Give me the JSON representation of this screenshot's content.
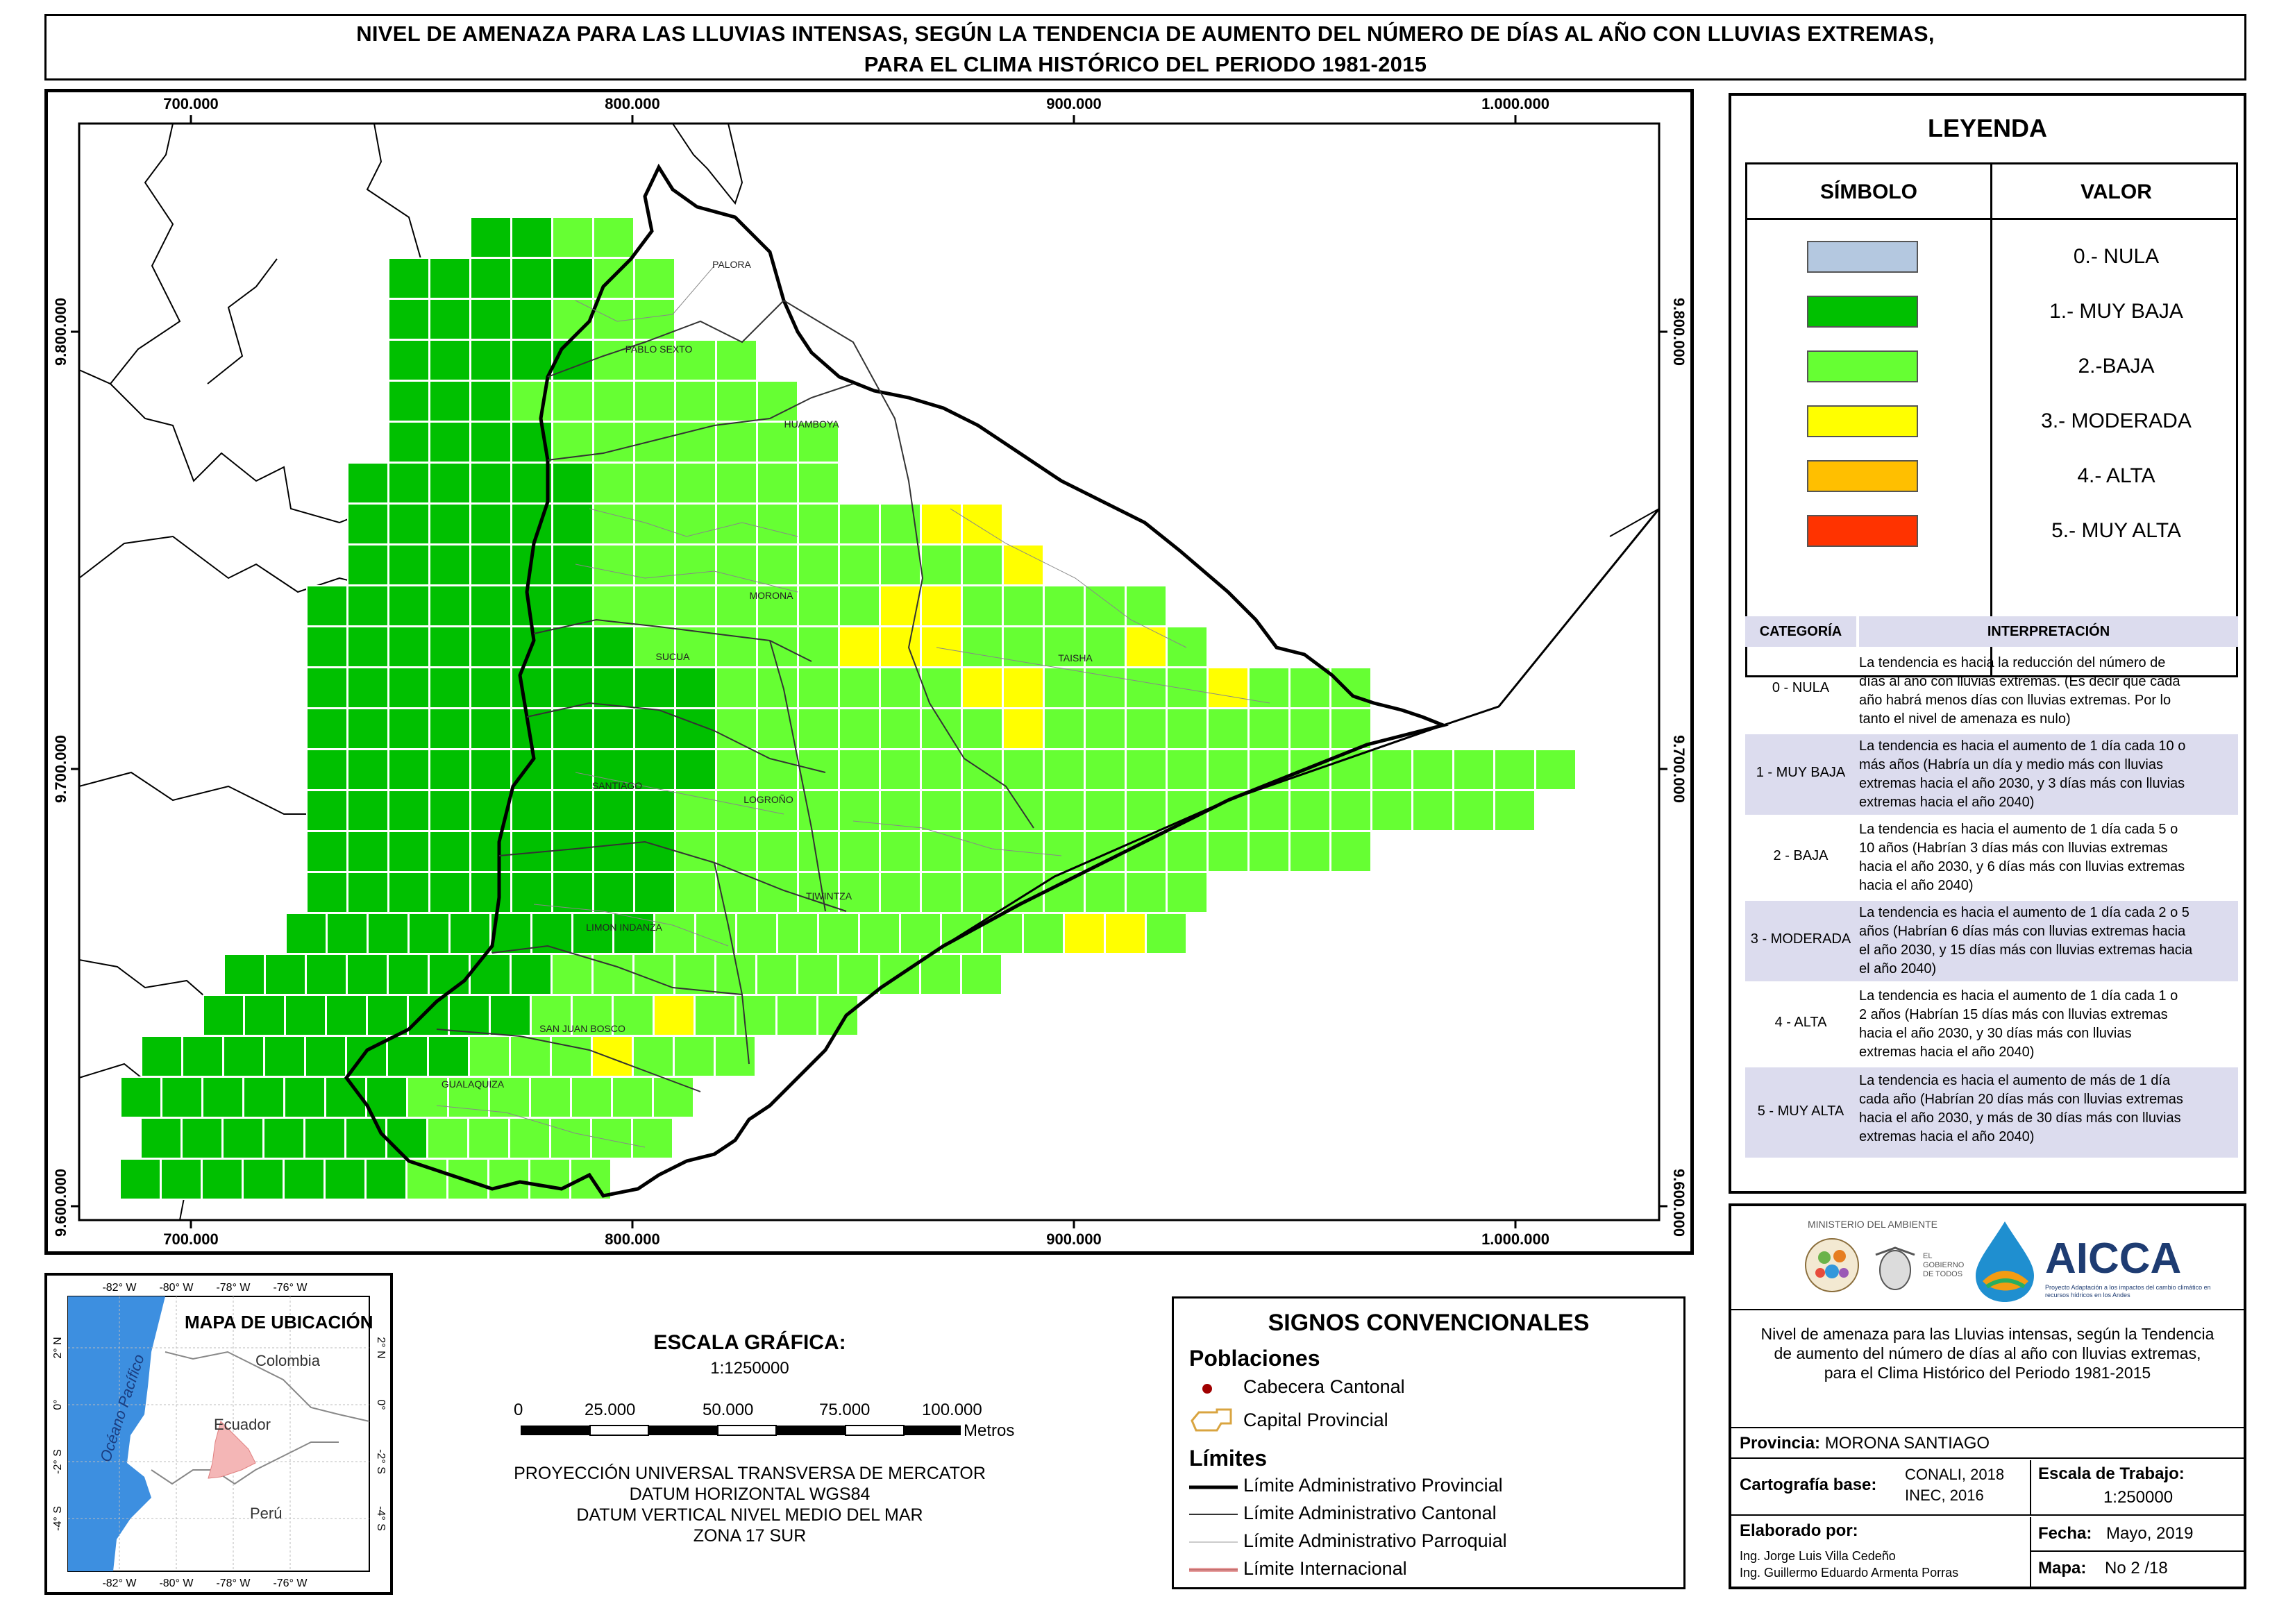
{
  "title": {
    "line1": "NIVEL DE AMENAZA PARA LAS LLUVIAS INTENSAS, SEGÚN LA TENDENCIA DE AUMENTO DEL NÚMERO DE DÍAS AL AÑO CON LLUVIAS EXTREMAS,",
    "line2": "PARA EL CLIMA HISTÓRICO DEL PERIODO 1981-2015"
  },
  "map": {
    "x_ticks": [
      "700.000",
      "800.000",
      "900.000",
      "1.000.000"
    ],
    "y_ticks": [
      "9.800.000",
      "9.700.000",
      "9.600.000"
    ],
    "places": [
      "PALORA",
      "PABLO SEXTO",
      "HUAMBOYA",
      "MORONA",
      "TAISHA",
      "SUCUA",
      "SANTIAGO",
      "LOGROÑO",
      "TIWINTZA",
      "LIMON INDANZA",
      "SAN JUAN BOSCO",
      "GUALAQUIZA"
    ]
  },
  "legend": {
    "title": "LEYENDA",
    "col_symbol": "SÍMBOLO",
    "col_value": "VALOR",
    "items": [
      {
        "label": "0.- NULA",
        "color": "#b4c8e0"
      },
      {
        "label": "1.- MUY BAJA",
        "color": "#00c000"
      },
      {
        "label": "2.-BAJA",
        "color": "#66ff33"
      },
      {
        "label": "3.- MODERADA",
        "color": "#ffff00"
      },
      {
        "label": "4.- ALTA",
        "color": "#ffbf00"
      },
      {
        "label": "5.- MUY ALTA",
        "color": "#ff3300"
      }
    ]
  },
  "interpretation": {
    "col_category": "CATEGORÍA",
    "col_interp": "INTERPRETACIÓN",
    "rows": [
      {
        "category": "0 - NULA",
        "lines": [
          "La tendencia es hacia la reducción del número de",
          "días al año con lluvias extremas. (Es decir que cada",
          "año habrá menos días con lluvias extremas. Por lo",
          "tanto el nivel de amenaza es nulo)"
        ]
      },
      {
        "category": "1 - MUY BAJA",
        "lines": [
          "La tendencia es hacia el aumento de 1 día cada 10 o",
          "más años (Habría un día y medio más con lluvias",
          "extremas hacia el año 2030, y 3 días más con lluvias",
          "extremas hacia el año 2040)"
        ]
      },
      {
        "category": "2 - BAJA",
        "lines": [
          "La tendencia es hacia el aumento de 1 día cada 5 o",
          "10 años (Habrían 3 días más con lluvias extremas",
          "hacia el año 2030, y 6 días más con lluvias extremas",
          "hacia el año 2040)"
        ]
      },
      {
        "category": "3 - MODERADA",
        "lines": [
          "La tendencia es hacia el aumento de 1 día cada 2 o 5",
          "años (Habrían 6 días más con lluvias extremas hacia",
          "el año 2030, y 15 días más con lluvias extremas hacia",
          "el año 2040)"
        ]
      },
      {
        "category": "4 - ALTA",
        "lines": [
          "La tendencia es hacia el aumento de 1 día cada 1 o",
          "2 años (Habrían 15 días más con lluvias extremas",
          "hacia el año 2030, y 30 días más con lluvias",
          "extremas hacia el año 2040)"
        ]
      },
      {
        "category": "5 - MUY ALTA",
        "lines": [
          "La tendencia es hacia el aumento de más de 1 día",
          "cada año (Habrían 20 días más con lluvias extremas",
          "hacia el año 2030, y más de 30 días más con lluvias",
          "extremas hacia el año 2040)"
        ]
      }
    ]
  },
  "logos": {
    "ministry": "MINISTERIO DEL AMBIENTE",
    "aicca": "AICCA",
    "aicca_sub": "Proyecto Adaptación a los impactos del cambio climático en recursos hídricos en los Andes",
    "gobierno": "EL GOBIERNO DE TODOS"
  },
  "map_description": [
    "Nivel de amenaza para las Lluvias intensas, según la Tendencia",
    "de aumento del número de días al año con lluvias extremas,",
    "para el Clima Histórico del Periodo 1981-2015"
  ],
  "info": {
    "provincia_label": "Provincia:",
    "provincia": "MORONA SANTIAGO",
    "cartografia_label": "Cartografía base:",
    "cartografia_1": "CONALI, 2018",
    "cartografia_2": "INEC, 2016",
    "escala_label": "Escala de Trabajo:",
    "escala": "1:250000",
    "elaborado_label": "Elaborado por:",
    "autor_1": "Ing. Jorge Luis Villa Cedeño",
    "autor_2": "Ing. Guillermo Eduardo Armenta Porras",
    "fecha_label": "Fecha:",
    "fecha": "Mayo, 2019",
    "mapa_label": "Mapa:",
    "mapa": "No 2 /18"
  },
  "location_map": {
    "title": "MAPA DE UBICACIÓN",
    "lon_ticks": [
      "-82° W",
      "-80° W",
      "-78° W",
      "-76° W"
    ],
    "lat_ticks": [
      "2° N",
      "0°",
      "-2° S",
      "-4° S"
    ],
    "countries": [
      "Colombia",
      "Ecuador",
      "Perú"
    ],
    "ocean": "Océano Pacífico"
  },
  "scale": {
    "title": "ESCALA GRÁFICA:",
    "ratio": "1:1250000",
    "ticks": [
      "0",
      "25.000",
      "50.000",
      "75.000",
      "100.000"
    ],
    "unit": "Metros",
    "projection": [
      "PROYECCIÓN UNIVERSAL TRANSVERSA DE MERCATOR",
      "DATUM HORIZONTAL WGS84",
      "DATUM VERTICAL NIVEL MEDIO DEL MAR",
      "ZONA 17 SUR"
    ]
  },
  "signos": {
    "title": "SIGNOS CONVENCIONALES",
    "poblaciones": "Poblaciones",
    "cabecera": "Cabecera Cantonal",
    "capital": "Capital Provincial",
    "limites": "Límites",
    "lim_provincial": "Límite Administrativo Provincial",
    "lim_cantonal": "Límite Administrativo Cantonal",
    "lim_parroquial": "Límite Administrativo Parroquial",
    "lim_internacional": "Límite Internacional"
  }
}
